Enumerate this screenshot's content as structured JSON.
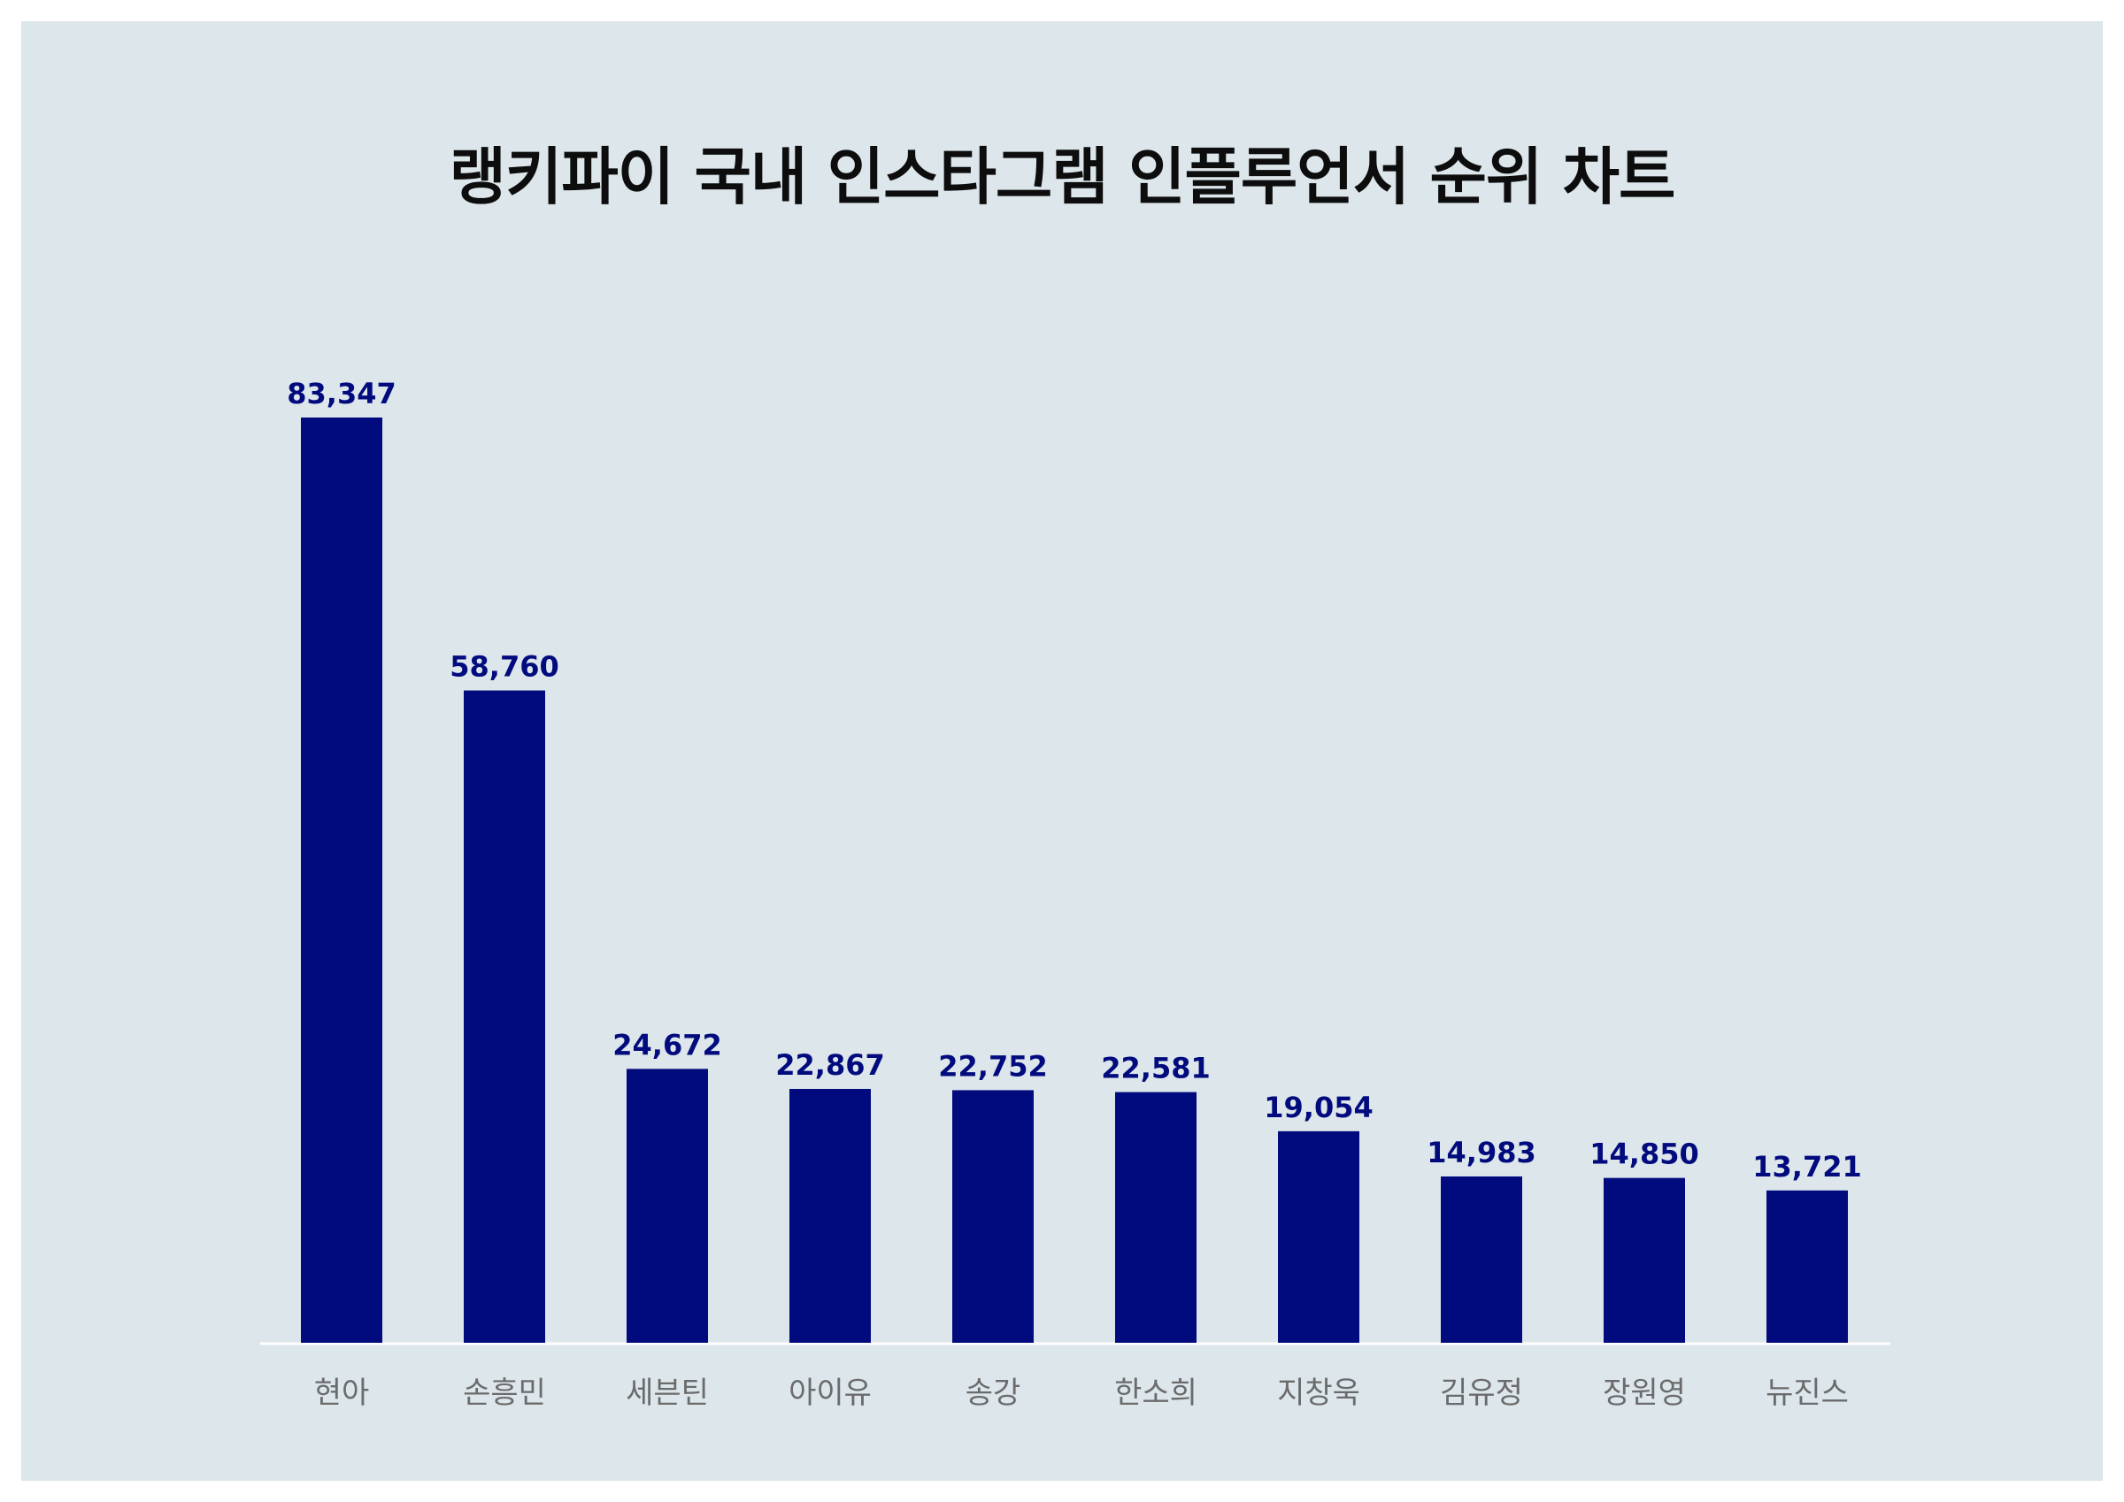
{
  "chart_data": {
    "type": "bar",
    "title": "랭키파이 국내 인스타그램 인플루언서 순위 차트",
    "categories": [
      "현아",
      "손흥민",
      "세븐틴",
      "아이유",
      "송강",
      "한소희",
      "지창욱",
      "김유정",
      "장원영",
      "뉴진스"
    ],
    "values": [
      83347,
      58760,
      24672,
      22867,
      22752,
      22581,
      19054,
      14983,
      14850,
      13721
    ],
    "value_labels": [
      "83,347",
      "58,760",
      "24,672",
      "22,867",
      "22,752",
      "22,581",
      "19,054",
      "14,983",
      "14,850",
      "13,721"
    ],
    "xlabel": "",
    "ylabel": "",
    "ylim": [
      0,
      83347
    ],
    "grid": false,
    "legend": "none",
    "colors": {
      "bar": "#020b7d",
      "value_label": "#020b7d",
      "category_label": "#6b6b6b",
      "background": "#dce6eb",
      "axis": "#ffffff"
    }
  }
}
